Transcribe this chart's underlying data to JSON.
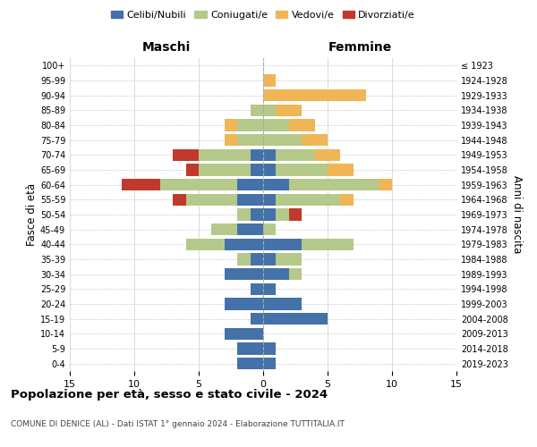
{
  "age_groups": [
    "0-4",
    "5-9",
    "10-14",
    "15-19",
    "20-24",
    "25-29",
    "30-34",
    "35-39",
    "40-44",
    "45-49",
    "50-54",
    "55-59",
    "60-64",
    "65-69",
    "70-74",
    "75-79",
    "80-84",
    "85-89",
    "90-94",
    "95-99",
    "100+"
  ],
  "anni_nascita": [
    "2019-2023",
    "2014-2018",
    "2009-2013",
    "2004-2008",
    "1999-2003",
    "1994-1998",
    "1989-1993",
    "1984-1988",
    "1979-1983",
    "1974-1978",
    "1969-1973",
    "1964-1968",
    "1959-1963",
    "1954-1958",
    "1949-1953",
    "1944-1948",
    "1939-1943",
    "1934-1938",
    "1929-1933",
    "1924-1928",
    "≤ 1923"
  ],
  "maschi": {
    "celibi": [
      2,
      2,
      3,
      1,
      3,
      1,
      3,
      1,
      3,
      2,
      1,
      2,
      2,
      1,
      1,
      0,
      0,
      0,
      0,
      0,
      0
    ],
    "coniugati": [
      0,
      0,
      0,
      0,
      0,
      0,
      0,
      1,
      3,
      2,
      1,
      4,
      6,
      4,
      4,
      2,
      2,
      1,
      0,
      0,
      0
    ],
    "vedovi": [
      0,
      0,
      0,
      0,
      0,
      0,
      0,
      0,
      0,
      0,
      0,
      0,
      0,
      0,
      0,
      1,
      1,
      0,
      0,
      0,
      0
    ],
    "divorziati": [
      0,
      0,
      0,
      0,
      0,
      0,
      0,
      0,
      0,
      0,
      0,
      1,
      3,
      1,
      2,
      0,
      0,
      0,
      0,
      0,
      0
    ]
  },
  "femmine": {
    "nubili": [
      1,
      1,
      0,
      5,
      3,
      1,
      2,
      1,
      3,
      0,
      1,
      1,
      2,
      1,
      1,
      0,
      0,
      0,
      0,
      0,
      0
    ],
    "coniugate": [
      0,
      0,
      0,
      0,
      0,
      0,
      1,
      2,
      4,
      1,
      1,
      5,
      7,
      4,
      3,
      3,
      2,
      1,
      0,
      0,
      0
    ],
    "vedove": [
      0,
      0,
      0,
      0,
      0,
      0,
      0,
      0,
      0,
      0,
      0,
      1,
      1,
      2,
      2,
      2,
      2,
      2,
      8,
      1,
      0
    ],
    "divorziate": [
      0,
      0,
      0,
      0,
      0,
      0,
      0,
      0,
      0,
      0,
      1,
      0,
      0,
      0,
      0,
      0,
      0,
      0,
      0,
      0,
      0
    ]
  },
  "colors": {
    "celibi_nubili": "#4472a8",
    "coniugati": "#b5c98a",
    "vedovi": "#f0b656",
    "divorziati": "#c0392b"
  },
  "xlim": 15,
  "title": "Popolazione per età, sesso e stato civile - 2024",
  "subtitle": "COMUNE DI DENICE (AL) - Dati ISTAT 1° gennaio 2024 - Elaborazione TUTTITALIA.IT",
  "ylabel_left": "Fasce di età",
  "ylabel_right": "Anni di nascita",
  "xlabel_maschi": "Maschi",
  "xlabel_femmine": "Femmine",
  "legend_labels": [
    "Celibi/Nubili",
    "Coniugati/e",
    "Vedovi/e",
    "Divorziati/e"
  ],
  "background_color": "#ffffff",
  "grid_color": "#cccccc"
}
